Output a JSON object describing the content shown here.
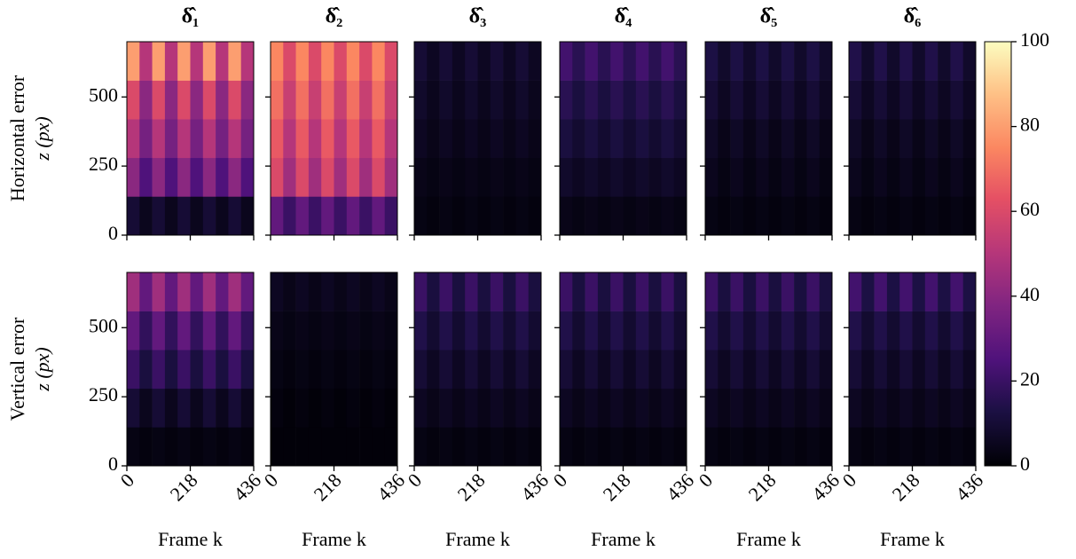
{
  "chart_data": {
    "type": "heatmap",
    "colormap": "magma",
    "columns": [
      "δ̂₁",
      "δ̂₂",
      "δ̂₃",
      "δ̂₄",
      "δ̂₅",
      "δ̂₆"
    ],
    "rows": [
      {
        "label": "Horizontal error",
        "ylabel": "z (px)"
      },
      {
        "label": "Vertical error",
        "ylabel": "z (px)"
      }
    ],
    "xlabel": "Frame k",
    "xlim": [
      0,
      436
    ],
    "xticks": [
      0,
      218,
      436
    ],
    "ylim": [
      0,
      700
    ],
    "yticks": [
      0,
      250,
      500
    ],
    "xbins": [
      0,
      43.6,
      87.2,
      130.8,
      174.4,
      218,
      261.6,
      305.2,
      348.8,
      392.4,
      436
    ],
    "ybins": [
      0,
      140,
      280,
      420,
      560,
      700
    ],
    "clim": [
      0,
      100
    ],
    "cticks": [
      0,
      20,
      40,
      60,
      80,
      100
    ],
    "panels": [
      [
        {
          "values": [
            [
              10,
              5,
              10,
              5,
              10,
              5,
              10,
              5,
              10,
              5
            ],
            [
              40,
              25,
              40,
              25,
              40,
              25,
              40,
              25,
              40,
              25
            ],
            [
              50,
              35,
              50,
              35,
              50,
              35,
              50,
              35,
              50,
              35
            ],
            [
              60,
              40,
              60,
              40,
              60,
              40,
              60,
              40,
              60,
              40
            ],
            [
              80,
              50,
              80,
              50,
              80,
              50,
              80,
              50,
              80,
              50
            ]
          ]
        },
        {
          "values": [
            [
              30,
              20,
              30,
              20,
              30,
              20,
              30,
              20,
              30,
              20
            ],
            [
              60,
              45,
              60,
              45,
              60,
              45,
              60,
              45,
              60,
              45
            ],
            [
              65,
              50,
              65,
              50,
              65,
              50,
              65,
              50,
              65,
              50
            ],
            [
              70,
              55,
              70,
              55,
              70,
              55,
              70,
              55,
              70,
              55
            ],
            [
              75,
              60,
              75,
              60,
              75,
              60,
              75,
              60,
              75,
              60
            ]
          ]
        },
        {
          "values": [
            [
              3,
              2,
              3,
              2,
              3,
              2,
              3,
              2,
              3,
              2
            ],
            [
              4,
              3,
              4,
              3,
              4,
              3,
              4,
              3,
              4,
              3
            ],
            [
              6,
              4,
              6,
              4,
              6,
              4,
              6,
              4,
              6,
              4
            ],
            [
              8,
              5,
              8,
              5,
              8,
              5,
              8,
              5,
              8,
              5
            ],
            [
              10,
              6,
              10,
              6,
              10,
              6,
              10,
              6,
              10,
              6
            ]
          ]
        },
        {
          "values": [
            [
              4,
              3,
              4,
              3,
              4,
              3,
              4,
              3,
              4,
              3
            ],
            [
              8,
              6,
              8,
              6,
              8,
              6,
              8,
              6,
              8,
              6
            ],
            [
              12,
              9,
              12,
              9,
              12,
              9,
              12,
              9,
              12,
              9
            ],
            [
              16,
              12,
              16,
              12,
              16,
              12,
              16,
              12,
              16,
              12
            ],
            [
              22,
              16,
              22,
              16,
              22,
              16,
              22,
              16,
              22,
              16
            ]
          ]
        },
        {
          "values": [
            [
              3,
              2,
              3,
              2,
              3,
              2,
              3,
              2,
              3,
              2
            ],
            [
              5,
              3,
              5,
              3,
              5,
              3,
              5,
              3,
              5,
              3
            ],
            [
              7,
              4,
              7,
              4,
              7,
              4,
              7,
              4,
              7,
              4
            ],
            [
              10,
              6,
              10,
              6,
              10,
              6,
              10,
              6,
              10,
              6
            ],
            [
              13,
              8,
              13,
              8,
              13,
              8,
              13,
              8,
              13,
              8
            ]
          ]
        },
        {
          "values": [
            [
              3,
              2,
              3,
              2,
              3,
              2,
              3,
              2,
              3,
              2
            ],
            [
              5,
              3,
              5,
              3,
              5,
              3,
              5,
              3,
              5,
              3
            ],
            [
              7,
              4,
              7,
              4,
              7,
              4,
              7,
              4,
              7,
              4
            ],
            [
              10,
              6,
              10,
              6,
              10,
              6,
              10,
              6,
              10,
              6
            ],
            [
              14,
              8,
              14,
              8,
              14,
              8,
              14,
              8,
              14,
              8
            ]
          ]
        }
      ],
      [
        {
          "values": [
            [
              3,
              2,
              3,
              2,
              3,
              2,
              3,
              2,
              3,
              2
            ],
            [
              10,
              5,
              10,
              5,
              10,
              5,
              10,
              5,
              10,
              5
            ],
            [
              20,
              12,
              20,
              12,
              20,
              12,
              20,
              12,
              20,
              12
            ],
            [
              30,
              18,
              30,
              18,
              30,
              18,
              30,
              18,
              30,
              18
            ],
            [
              45,
              30,
              45,
              30,
              45,
              30,
              45,
              30,
              45,
              30
            ]
          ]
        },
        {
          "values": [
            [
              1,
              1,
              1,
              1,
              1,
              1,
              1,
              1,
              1,
              1
            ],
            [
              2,
              1,
              2,
              1,
              2,
              1,
              2,
              1,
              2,
              1
            ],
            [
              3,
              2,
              3,
              2,
              3,
              2,
              3,
              2,
              3,
              2
            ],
            [
              4,
              3,
              4,
              3,
              4,
              3,
              4,
              3,
              4,
              3
            ],
            [
              6,
              4,
              6,
              4,
              6,
              4,
              6,
              4,
              6,
              4
            ]
          ]
        },
        {
          "values": [
            [
              3,
              2,
              3,
              2,
              3,
              2,
              3,
              2,
              3,
              2
            ],
            [
              6,
              4,
              6,
              4,
              6,
              4,
              6,
              4,
              6,
              4
            ],
            [
              10,
              6,
              10,
              6,
              10,
              6,
              10,
              6,
              10,
              6
            ],
            [
              14,
              9,
              14,
              9,
              14,
              9,
              14,
              9,
              14,
              9
            ],
            [
              20,
              12,
              20,
              12,
              20,
              12,
              20,
              12,
              20,
              12
            ]
          ]
        },
        {
          "values": [
            [
              3,
              2,
              3,
              2,
              3,
              2,
              3,
              2,
              3,
              2
            ],
            [
              6,
              4,
              6,
              4,
              6,
              4,
              6,
              4,
              6,
              4
            ],
            [
              10,
              6,
              10,
              6,
              10,
              6,
              10,
              6,
              10,
              6
            ],
            [
              14,
              9,
              14,
              9,
              14,
              9,
              14,
              9,
              14,
              9
            ],
            [
              20,
              12,
              20,
              12,
              20,
              12,
              20,
              12,
              20,
              12
            ]
          ]
        },
        {
          "values": [
            [
              3,
              2,
              3,
              2,
              3,
              2,
              3,
              2,
              3,
              2
            ],
            [
              6,
              4,
              6,
              4,
              6,
              4,
              6,
              4,
              6,
              4
            ],
            [
              10,
              6,
              10,
              6,
              10,
              6,
              10,
              6,
              10,
              6
            ],
            [
              14,
              9,
              14,
              9,
              14,
              9,
              14,
              9,
              14,
              9
            ],
            [
              20,
              12,
              20,
              12,
              20,
              12,
              20,
              12,
              20,
              12
            ]
          ]
        },
        {
          "values": [
            [
              3,
              2,
              3,
              2,
              3,
              2,
              3,
              2,
              3,
              2
            ],
            [
              6,
              4,
              6,
              4,
              6,
              4,
              6,
              4,
              6,
              4
            ],
            [
              10,
              6,
              10,
              6,
              10,
              6,
              10,
              6,
              10,
              6
            ],
            [
              14,
              9,
              14,
              9,
              14,
              9,
              14,
              9,
              14,
              9
            ],
            [
              22,
              13,
              22,
              13,
              22,
              13,
              22,
              13,
              22,
              13
            ]
          ]
        }
      ]
    ]
  }
}
